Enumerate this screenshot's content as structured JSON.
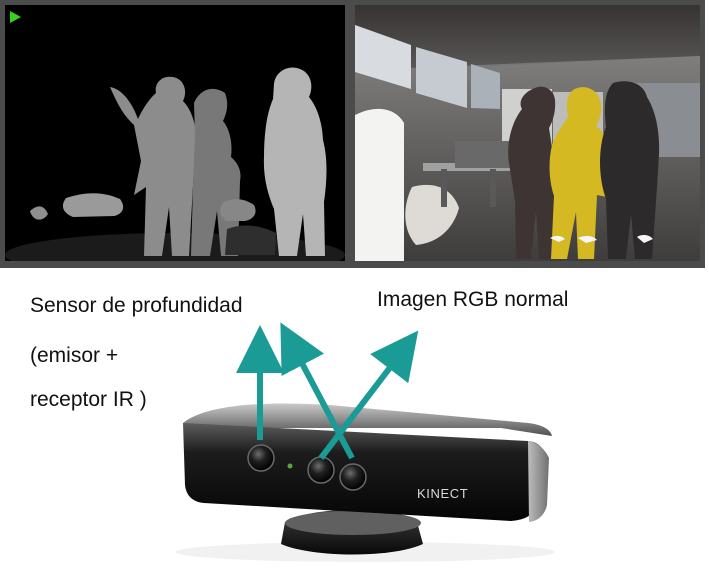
{
  "labels": {
    "depth_line1": "Sensor de profundidad",
    "depth_line2": "(emisor +",
    "depth_line3": "receptor IR )",
    "rgb": "Imagen RGB normal"
  },
  "device": {
    "brand": "KINECT"
  },
  "colors": {
    "arrow": "#1a9b96",
    "play_icon": "#39d11a",
    "frame": "#4b4b4b"
  },
  "icons": {
    "top_left": "play-icon"
  }
}
